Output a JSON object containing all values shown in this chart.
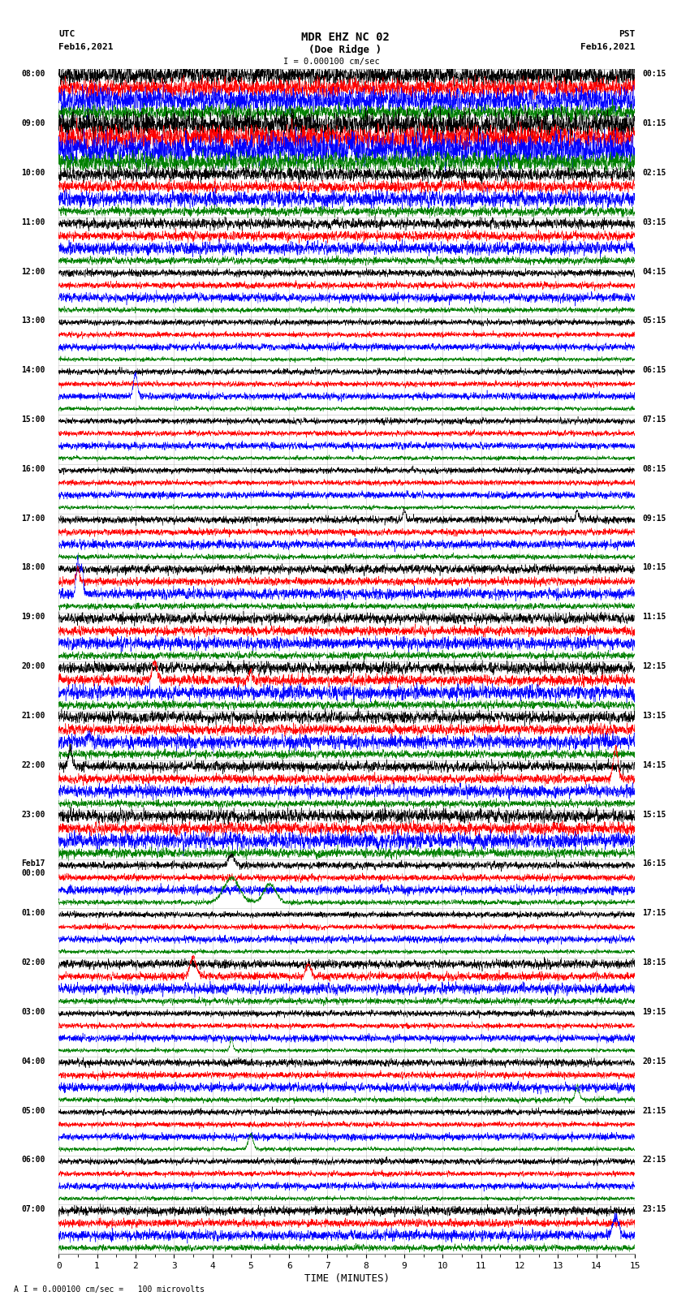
{
  "title_line1": "MDR EHZ NC 02",
  "title_line2": "(Doe Ridge )",
  "scale_label": "I = 0.000100 cm/sec",
  "footer_label": "A I = 0.000100 cm/sec =   100 microvolts",
  "left_label_top": "UTC",
  "left_label_bot": "Feb16,2021",
  "right_label_top": "PST",
  "right_label_bot": "Feb16,2021",
  "xlabel": "TIME (MINUTES)",
  "colors": [
    "black",
    "red",
    "blue",
    "green"
  ],
  "bg_color": "white",
  "grid_color": "#999999",
  "left_times": [
    "08:00",
    "09:00",
    "10:00",
    "11:00",
    "12:00",
    "13:00",
    "14:00",
    "15:00",
    "16:00",
    "17:00",
    "18:00",
    "19:00",
    "20:00",
    "21:00",
    "22:00",
    "23:00",
    "Feb17\n00:00",
    "01:00",
    "02:00",
    "03:00",
    "04:00",
    "05:00",
    "06:00",
    "07:00"
  ],
  "right_times": [
    "00:15",
    "01:15",
    "02:15",
    "03:15",
    "04:15",
    "05:15",
    "06:15",
    "07:15",
    "08:15",
    "09:15",
    "10:15",
    "11:15",
    "12:15",
    "13:15",
    "14:15",
    "15:15",
    "16:15",
    "17:15",
    "18:15",
    "19:15",
    "20:15",
    "21:15",
    "22:15",
    "23:15"
  ],
  "num_hour_rows": 24,
  "traces_per_hour": 4,
  "xmin": 0,
  "xmax": 15,
  "xticks": [
    0,
    1,
    2,
    3,
    4,
    5,
    6,
    7,
    8,
    9,
    10,
    11,
    12,
    13,
    14,
    15
  ],
  "seed": 42,
  "activity_levels": [
    1.4,
    1.8,
    0.9,
    0.7,
    0.5,
    0.4,
    0.4,
    0.4,
    0.4,
    0.5,
    0.6,
    0.7,
    0.8,
    0.8,
    0.7,
    0.9,
    0.5,
    0.4,
    0.6,
    0.4,
    0.5,
    0.4,
    0.4,
    0.6
  ],
  "color_activity_multipliers": [
    1.0,
    0.9,
    1.2,
    0.7
  ],
  "trace_amplitude": 0.32,
  "n_points": 4000
}
